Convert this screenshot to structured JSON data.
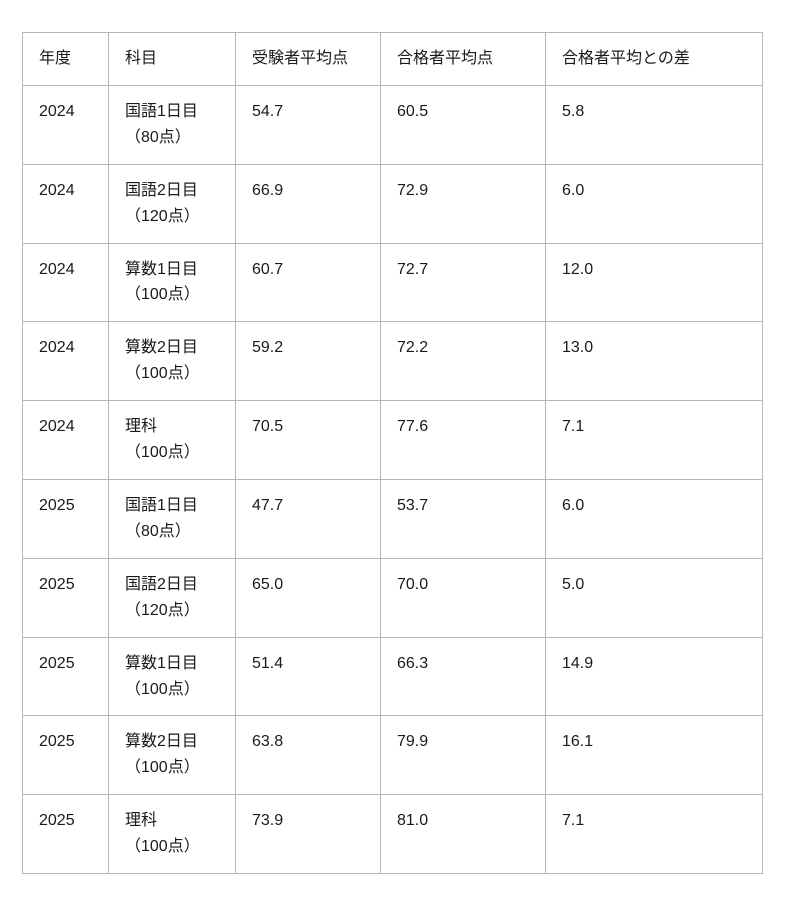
{
  "colors": {
    "background": "#ffffff",
    "border": "#b7b7b7",
    "text": "#1a1a1a"
  },
  "table": {
    "columns": [
      "年度",
      "科目",
      "受験者平均点",
      "合格者平均点",
      "合格者平均との差"
    ],
    "rows": [
      {
        "year": "2024",
        "subject": "国語1日目",
        "subject_note": "（80点）",
        "examinee_avg": "54.7",
        "passer_avg": "60.5",
        "diff": "5.8"
      },
      {
        "year": "2024",
        "subject": "国語2日目",
        "subject_note": "（120点）",
        "examinee_avg": "66.9",
        "passer_avg": "72.9",
        "diff": "6.0"
      },
      {
        "year": "2024",
        "subject": "算数1日目",
        "subject_note": "（100点）",
        "examinee_avg": "60.7",
        "passer_avg": "72.7",
        "diff": "12.0"
      },
      {
        "year": "2024",
        "subject": "算数2日目",
        "subject_note": "（100点）",
        "examinee_avg": "59.2",
        "passer_avg": "72.2",
        "diff": "13.0"
      },
      {
        "year": "2024",
        "subject": "理科",
        "subject_note": "（100点）",
        "examinee_avg": "70.5",
        "passer_avg": "77.6",
        "diff": "7.1"
      },
      {
        "year": "2025",
        "subject": "国語1日目",
        "subject_note": "（80点）",
        "examinee_avg": "47.7",
        "passer_avg": "53.7",
        "diff": "6.0"
      },
      {
        "year": "2025",
        "subject": "国語2日目",
        "subject_note": "（120点）",
        "examinee_avg": "65.0",
        "passer_avg": "70.0",
        "diff": "5.0"
      },
      {
        "year": "2025",
        "subject": "算数1日目",
        "subject_note": "（100点）",
        "examinee_avg": "51.4",
        "passer_avg": "66.3",
        "diff": "14.9"
      },
      {
        "year": "2025",
        "subject": "算数2日目",
        "subject_note": "（100点）",
        "examinee_avg": "63.8",
        "passer_avg": "79.9",
        "diff": "16.1"
      },
      {
        "year": "2025",
        "subject": "理科",
        "subject_note": "（100点）",
        "examinee_avg": "73.9",
        "passer_avg": "81.0",
        "diff": "7.1"
      }
    ]
  },
  "chart_data": {
    "type": "table",
    "title": "",
    "columns": [
      "年度",
      "科目",
      "受験者平均点",
      "合格者平均点",
      "合格者平均との差"
    ],
    "rows": [
      [
        "2024",
        "国語1日目（80点）",
        54.7,
        60.5,
        5.8
      ],
      [
        "2024",
        "国語2日目（120点）",
        66.9,
        72.9,
        6.0
      ],
      [
        "2024",
        "算数1日目（100点）",
        60.7,
        72.7,
        12.0
      ],
      [
        "2024",
        "算数2日目（100点）",
        59.2,
        72.2,
        13.0
      ],
      [
        "2024",
        "理科（100点）",
        70.5,
        77.6,
        7.1
      ],
      [
        "2025",
        "国語1日目（80点）",
        47.7,
        53.7,
        6.0
      ],
      [
        "2025",
        "国語2日目（120点）",
        65.0,
        70.0,
        5.0
      ],
      [
        "2025",
        "算数1日目（100点）",
        51.4,
        66.3,
        14.9
      ],
      [
        "2025",
        "算数2日目（100点）",
        63.8,
        79.9,
        16.1
      ],
      [
        "2025",
        "理科（100点）",
        73.9,
        81.0,
        7.1
      ]
    ]
  }
}
